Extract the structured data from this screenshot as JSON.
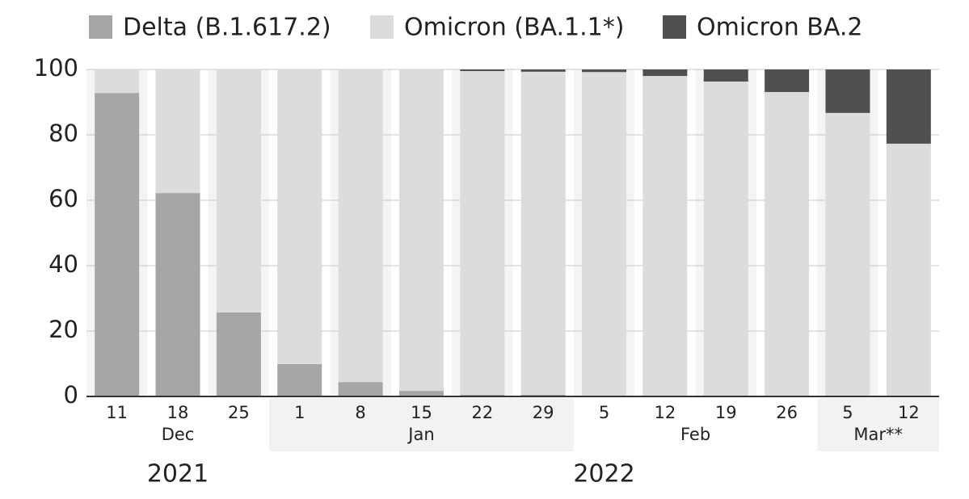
{
  "chart_data": {
    "type": "bar",
    "stacked": true,
    "categories": [
      "11",
      "18",
      "25",
      "1",
      "8",
      "15",
      "22",
      "29",
      "5",
      "12",
      "19",
      "26",
      "5",
      "12"
    ],
    "months": [
      {
        "label": "Dec",
        "count": 3
      },
      {
        "label": "Jan",
        "count": 5
      },
      {
        "label": "Feb",
        "count": 4
      },
      {
        "label": "Mar**",
        "count": 2
      }
    ],
    "years": [
      {
        "label": "2021",
        "count": 3
      },
      {
        "label": "2022",
        "count": 11
      }
    ],
    "series": [
      {
        "name": "Delta (B.1.617.2)",
        "color": "#a6a6a6",
        "values": [
          92.8,
          62.2,
          25.7,
          9.9,
          4.4,
          1.7,
          0.5,
          0.5,
          0,
          0,
          0,
          0,
          0,
          0
        ]
      },
      {
        "name": "Omicron (BA.1.1*)",
        "color": "#dcdcdc",
        "values": [
          7.2,
          37.8,
          74.3,
          90.1,
          95.6,
          98.3,
          99.0,
          98.8,
          99.2,
          98.0,
          96.3,
          93.1,
          86.7,
          77.3
        ]
      },
      {
        "name": "Omicron BA.2",
        "color": "#505050",
        "values": [
          0,
          0,
          0,
          0,
          0,
          0,
          0.5,
          0.7,
          0.8,
          2.0,
          3.7,
          6.9,
          13.3,
          22.7
        ]
      }
    ],
    "ylim": [
      0,
      100
    ],
    "yticks": [
      0,
      20,
      40,
      60,
      80,
      100
    ],
    "grid": true
  }
}
